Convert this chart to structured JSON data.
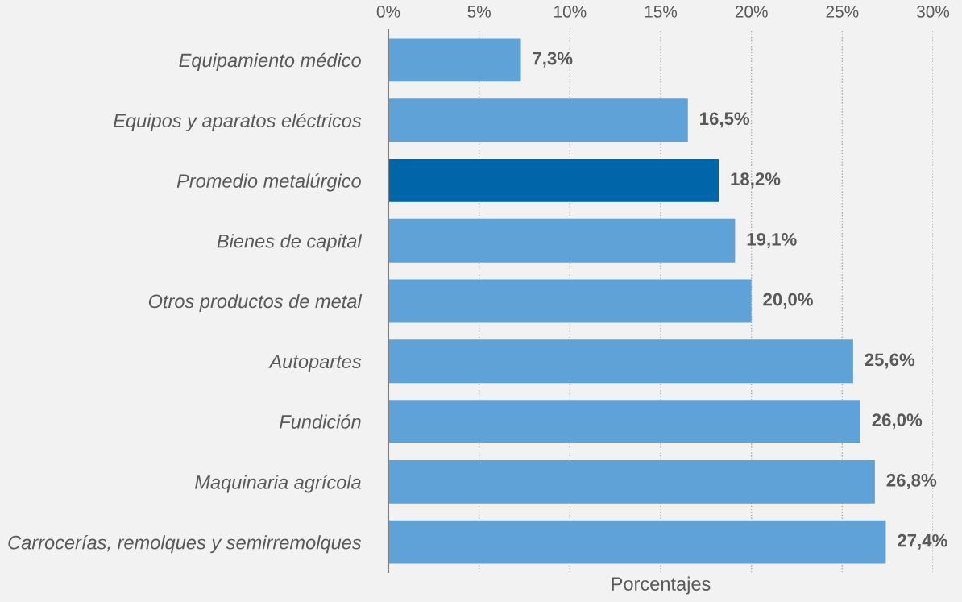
{
  "chart_data": {
    "type": "bar",
    "orientation": "horizontal",
    "xlabel": "Porcentajes",
    "categories": [
      "Equipamiento médico",
      "Equipos y aparatos eléctricos",
      "Promedio metalúrgico",
      "Bienes de capital",
      "Otros productos de metal",
      "Autopartes",
      "Fundición",
      "Maquinaria agrícola",
      "Carrocerías, remolques y semirremolques"
    ],
    "values": [
      7.3,
      16.5,
      18.2,
      19.1,
      20.0,
      25.6,
      26.0,
      26.8,
      27.4
    ],
    "value_labels": [
      "7,3%",
      "16,5%",
      "18,2%",
      "19,1%",
      "20,0%",
      "25,6%",
      "26,0%",
      "26,8%",
      "27,4%"
    ],
    "colors": [
      "#5fa2d8",
      "#5fa2d8",
      "#0066aa",
      "#5fa2d8",
      "#5fa2d8",
      "#5fa2d8",
      "#5fa2d8",
      "#5fa2d8",
      "#5fa2d8"
    ],
    "xlim": [
      0,
      30
    ],
    "xticks": [
      {
        "value": 0,
        "label": "0%"
      },
      {
        "value": 5,
        "label": "5%"
      },
      {
        "value": 10,
        "label": "10%"
      },
      {
        "value": 15,
        "label": "15%"
      },
      {
        "value": 20,
        "label": "20%"
      },
      {
        "value": 25,
        "label": "25%"
      },
      {
        "value": 30,
        "label": "30%"
      }
    ],
    "grid": "x",
    "line_style": "dotted"
  }
}
